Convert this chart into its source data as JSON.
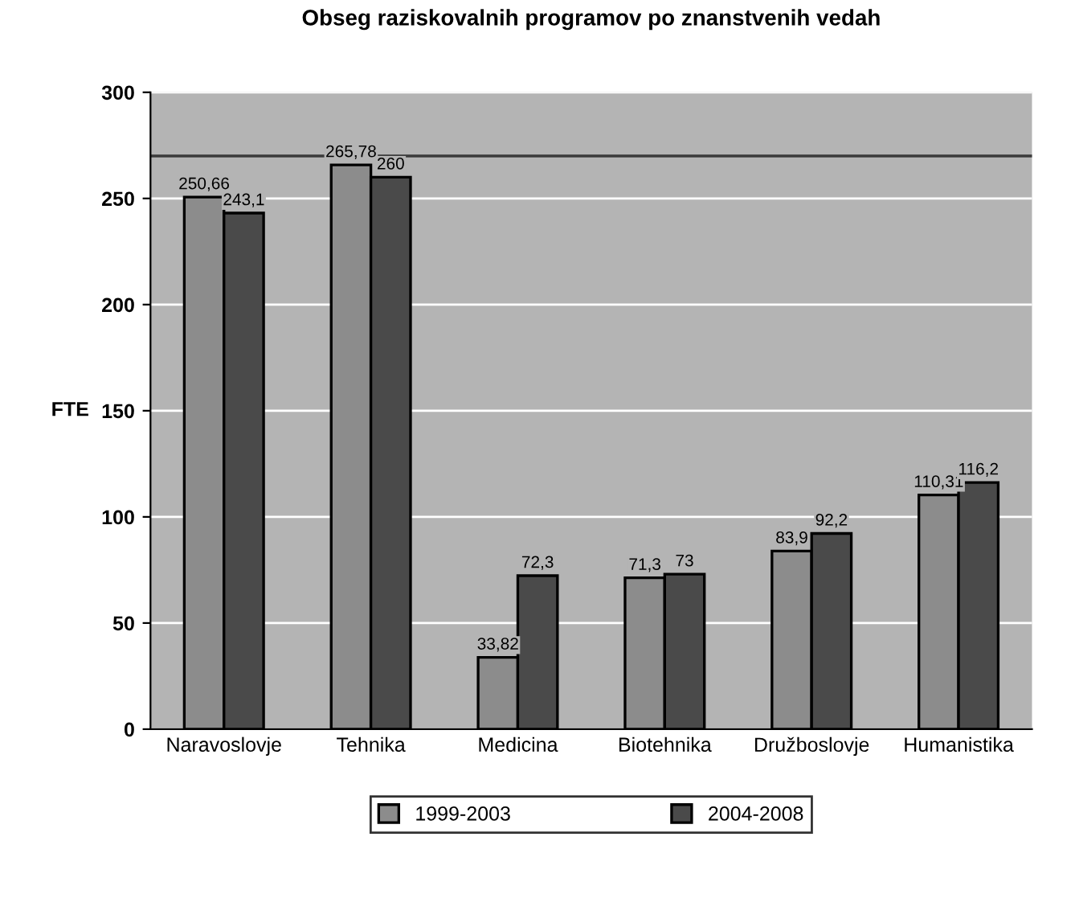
{
  "chart_data": {
    "type": "bar",
    "title": "Obseg raziskovalnih programov po znanstvenih vedah",
    "ylabel": "FTE",
    "categories": [
      "Naravoslovje",
      "Tehnika",
      "Medicina",
      "Biotehnika",
      "Družboslovje",
      "Humanistika"
    ],
    "series": [
      {
        "name": "1999-2003",
        "color": "#8c8c8c",
        "values": [
          250.66,
          265.78,
          33.82,
          71.3,
          83.9,
          110.31
        ],
        "value_labels": [
          "250,66",
          "265,78",
          "33,82",
          "71,3",
          "83,9",
          "110,31"
        ]
      },
      {
        "name": "2004-2008",
        "color": "#4a4a4a",
        "values": [
          243.1,
          260,
          72.3,
          73,
          92.2,
          116.2
        ],
        "value_labels": [
          "243,1",
          "260",
          "72,3",
          "73",
          "92,2",
          "116,2"
        ]
      }
    ],
    "ylim": [
      0,
      300
    ],
    "yticks": [
      0,
      50,
      100,
      150,
      200,
      250,
      300
    ],
    "grid": "y",
    "legend": "bottom",
    "ref_lines": [
      {
        "axis": "y",
        "value": 270,
        "color": "#3a3a3a"
      }
    ]
  }
}
